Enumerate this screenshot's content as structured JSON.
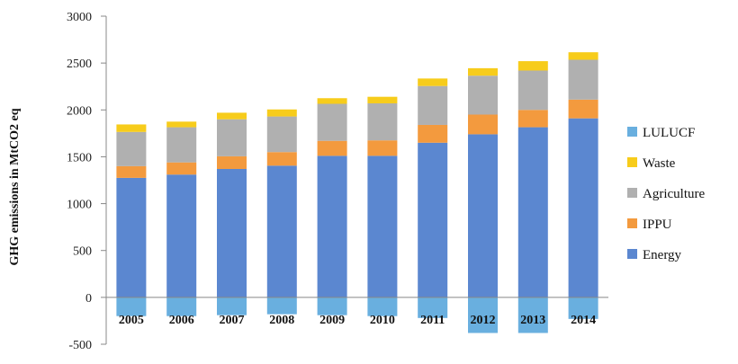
{
  "chart_data": {
    "type": "bar",
    "stacked": true,
    "title": "",
    "xlabel": "",
    "ylabel": "GHG emissions in MtCO2 eq",
    "ylim": [
      -500,
      3000
    ],
    "yticks": [
      -500,
      0,
      500,
      1000,
      1500,
      2000,
      2500,
      3000
    ],
    "categories": [
      "2005",
      "2006",
      "2007",
      "2008",
      "2009",
      "2010",
      "2011",
      "2012",
      "2013",
      "2014"
    ],
    "series": [
      {
        "name": "Energy",
        "color": "#5B87D0",
        "values": [
          1275,
          1310,
          1370,
          1405,
          1510,
          1510,
          1650,
          1740,
          1815,
          1910
        ]
      },
      {
        "name": "IPPU",
        "color": "#F39A3E",
        "values": [
          125,
          130,
          135,
          145,
          160,
          165,
          190,
          210,
          185,
          200
        ]
      },
      {
        "name": "Agriculture",
        "color": "#B0B0B0",
        "values": [
          365,
          375,
          395,
          380,
          395,
          395,
          415,
          415,
          420,
          425
        ]
      },
      {
        "name": "Waste",
        "color": "#F7CC1B",
        "values": [
          80,
          60,
          70,
          75,
          60,
          70,
          80,
          80,
          100,
          80
        ]
      },
      {
        "name": "LULUCF",
        "color": "#69AFDF",
        "values": [
          -200,
          -200,
          -190,
          -180,
          -190,
          -200,
          -220,
          -380,
          -380,
          -230
        ]
      }
    ],
    "legend_position": "right",
    "legend_order": [
      "LULUCF",
      "Waste",
      "Agriculture",
      "IPPU",
      "Energy"
    ],
    "grid": false
  }
}
